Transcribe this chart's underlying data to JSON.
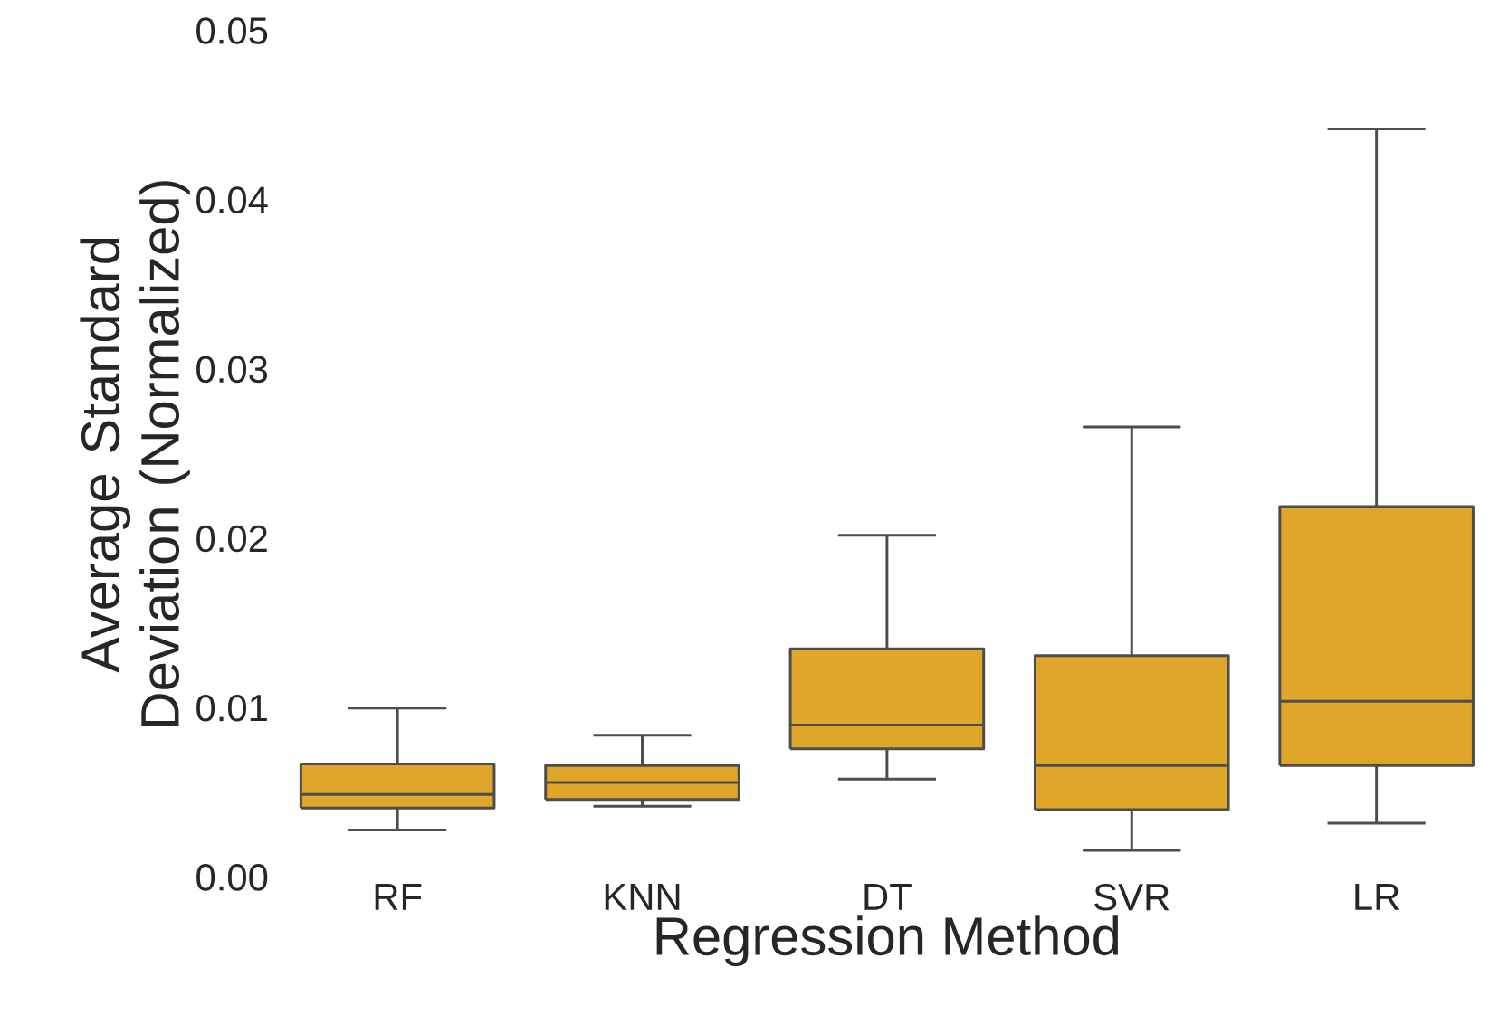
{
  "chart_data": {
    "type": "box",
    "xlabel": "Regression Method",
    "ylabel": "Average Standard Deviation (Normalized)",
    "categories": [
      "RF",
      "KNN",
      "DT",
      "SVR",
      "LR"
    ],
    "color": "#dfa629",
    "boxes": [
      {
        "low": 0.0028,
        "q1": 0.0041,
        "median": 0.0049,
        "q3": 0.0067,
        "high": 0.01
      },
      {
        "low": 0.0042,
        "q1": 0.0046,
        "median": 0.0056,
        "q3": 0.0066,
        "high": 0.0084
      },
      {
        "low": 0.0058,
        "q1": 0.0076,
        "median": 0.009,
        "q3": 0.0135,
        "high": 0.0202
      },
      {
        "low": 0.0016,
        "q1": 0.004,
        "median": 0.0066,
        "q3": 0.0131,
        "high": 0.0266
      },
      {
        "low": 0.0032,
        "q1": 0.0066,
        "median": 0.0104,
        "q3": 0.0219,
        "high": 0.0442
      }
    ],
    "ylim": [
      0,
      0.05
    ],
    "yticks": [
      {
        "value": 0,
        "label": "0.00"
      },
      0.01,
      0.02,
      0.03,
      0.04,
      0.05
    ]
  }
}
